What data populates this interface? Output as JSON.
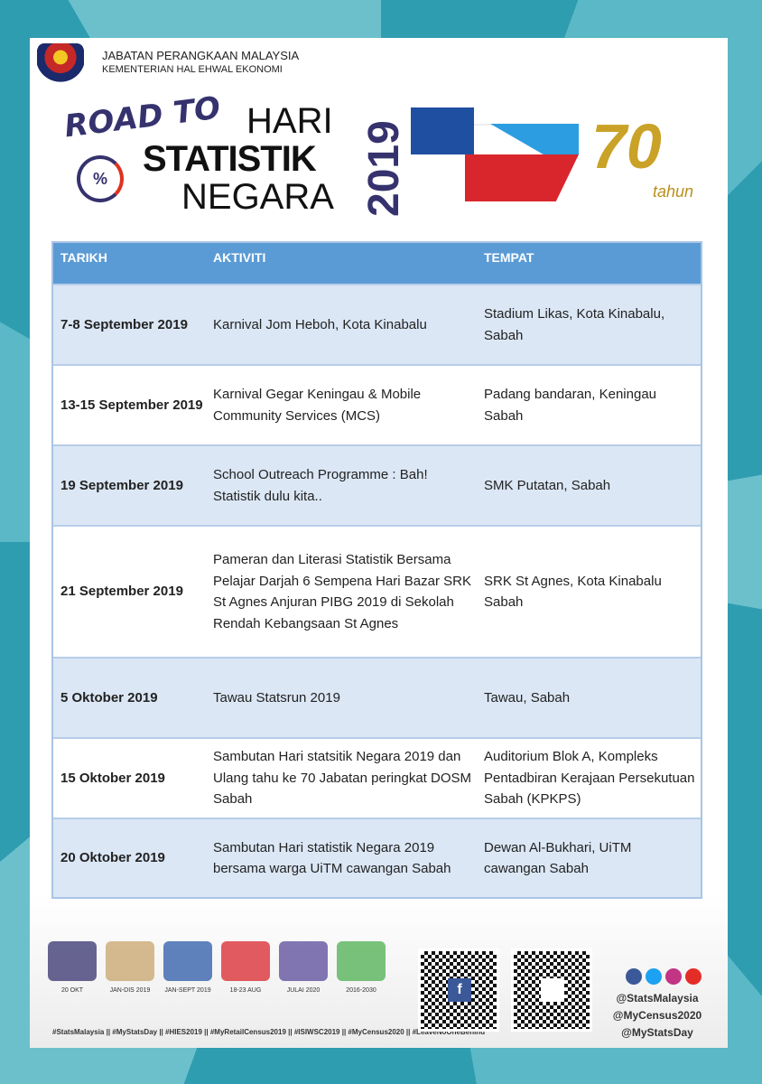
{
  "header": {
    "org_name": "JABATAN PERANGKAAN MALAYSIA",
    "ministry": "KEMENTERIAN HAL EHWAL EKONOMI",
    "road_to": "ROAD TO",
    "title_line1": "HARI",
    "title_line2": "STATISTIK",
    "title_line3": "NEGARA",
    "year": "2019",
    "anniversary_number": "70",
    "anniversary_word": "tahun"
  },
  "table": {
    "headers": [
      "TARIKH",
      "AKTIVITI",
      "TEMPAT"
    ],
    "rows": [
      {
        "date": "7-8 September 2019",
        "activity": "Karnival Jom Heboh, Kota Kinabalu",
        "place": "Stadium Likas, Kota Kinabalu, Sabah"
      },
      {
        "date": "13-15 September 2019",
        "activity": "Karnival Gegar Keningau & Mobile Community Services (MCS)",
        "place": "Padang bandaran, Keningau Sabah"
      },
      {
        "date": "19 September 2019",
        "activity": "School Outreach Programme : Bah! Statistik dulu kita..",
        "place": "SMK Putatan, Sabah"
      },
      {
        "date": "21 September 2019",
        "activity": "Pameran dan Literasi Statistik Bersama Pelajar Darjah 6 Sempena Hari Bazar SRK St Agnes Anjuran PIBG 2019 di Sekolah Rendah Kebangsaan St Agnes",
        "place": "SRK St Agnes, Kota Kinabalu Sabah"
      },
      {
        "date": "5 Oktober 2019",
        "activity": "Tawau Statsrun 2019",
        "place": "Tawau, Sabah"
      },
      {
        "date": "15 Oktober 2019",
        "activity": "Sambutan Hari statsitik Negara 2019 dan Ulang tahu ke 70 Jabatan peringkat DOSM Sabah",
        "place": "Auditorium Blok A, Kompleks Pentadbiran Kerajaan Persekutuan Sabah (KPKPS)"
      },
      {
        "date": "20 Oktober 2019",
        "activity": "Sambutan Hari statistik Negara 2019 bersama warga UiTM cawangan Sabah",
        "place": "Dewan Al-Bukhari, UiTM cawangan Sabah"
      }
    ]
  },
  "footer": {
    "logos": [
      {
        "date": "20 OKT",
        "color": "#35326e"
      },
      {
        "date": "JAN-DIS 2019",
        "color": "#c7a46a"
      },
      {
        "date": "JAN-SEPT 2019",
        "color": "#2b5aa8"
      },
      {
        "date": "18-23 AUG",
        "color": "#d9262c"
      },
      {
        "date": "JULAI 2020",
        "color": "#5a4a9a"
      },
      {
        "date": "2016-2030",
        "color": "#4caf50"
      }
    ],
    "hashtags": "#StatsMalaysia || #MyStatsDay || #HIES2019 || #MyRetailCensus2019 || #ISIWSC2019 || #MyCensus2020 || #LeaveNoOneBehind",
    "social_colors": [
      "#3b5998",
      "#1da1f2",
      "#c13584",
      "#e52d27"
    ],
    "handles": [
      "@StatsMalaysia",
      "@MyCensus2020",
      "@MyStatsDay"
    ]
  }
}
